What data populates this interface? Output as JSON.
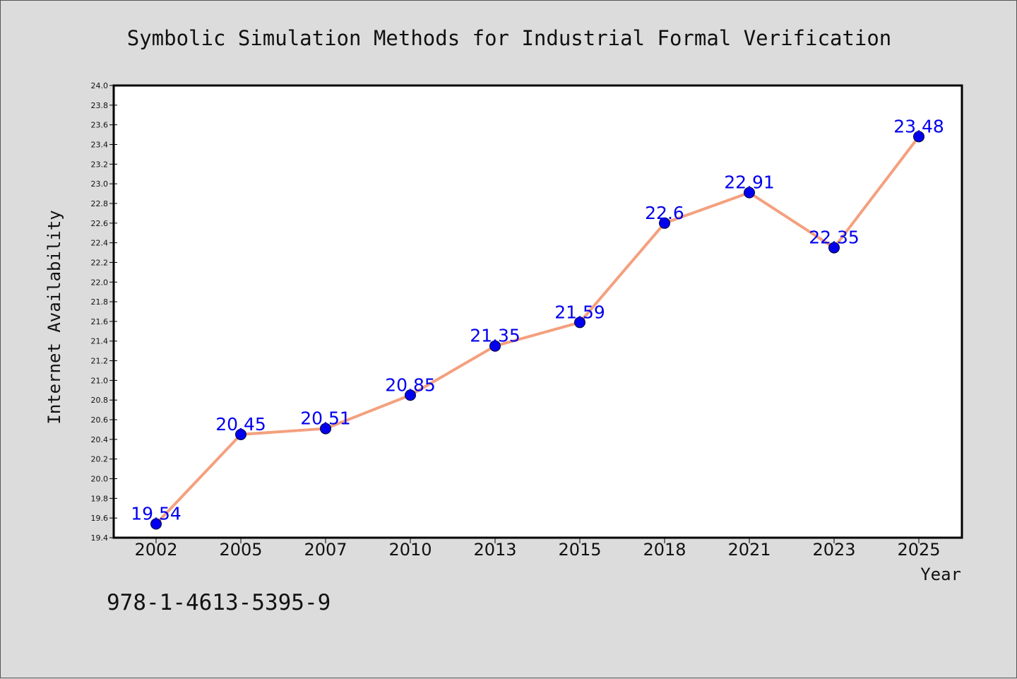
{
  "chart_data": {
    "type": "line",
    "title": "Symbolic Simulation Methods for Industrial Formal Verification",
    "xlabel": "Year",
    "ylabel": "Internet Availability",
    "categories": [
      "2002",
      "2005",
      "2007",
      "2010",
      "2013",
      "2015",
      "2018",
      "2021",
      "2023",
      "2025"
    ],
    "series": [
      {
        "values": [
          19.54,
          20.45,
          20.51,
          20.85,
          21.35,
          21.59,
          22.6,
          22.91,
          22.35,
          23.48
        ],
        "labels": [
          "19.54",
          "20.45",
          "20.51",
          "20.85",
          "21.35",
          "21.59",
          "22.6",
          "22.91",
          "22.35",
          "23.48"
        ]
      }
    ],
    "ylim": [
      19.4,
      24.0
    ],
    "yticks": [
      "19.4",
      "19.6",
      "19.8",
      "20.0",
      "20.2",
      "20.4",
      "20.6",
      "20.8",
      "21.0",
      "21.2",
      "21.4",
      "21.6",
      "21.8",
      "22.0",
      "22.2",
      "22.4",
      "22.6",
      "22.8",
      "23.0",
      "23.2",
      "23.4",
      "23.6",
      "23.8",
      "24.0"
    ],
    "grid": false,
    "legend": "none",
    "colors": {
      "line": "#f4a07e",
      "marker": "#0000ee",
      "data_label": "#0000ee",
      "background": "#dcdcdc",
      "plot_background": "#ffffff"
    }
  },
  "footer": {
    "isbn": "978-1-4613-5395-9"
  }
}
